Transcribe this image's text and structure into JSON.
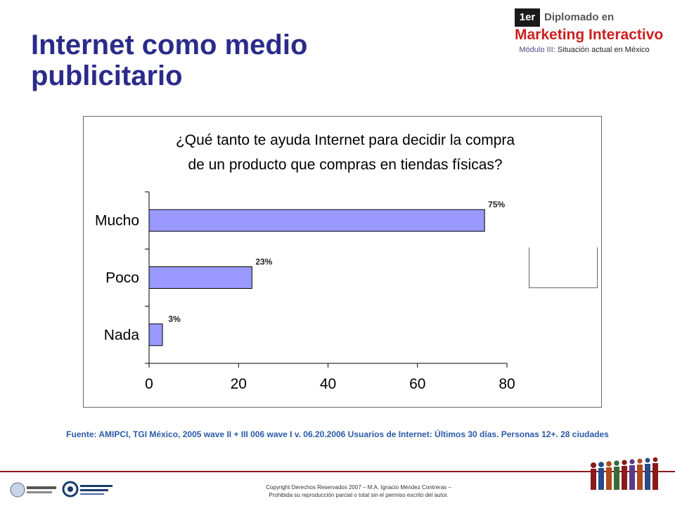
{
  "slide": {
    "title": "Internet como medio publicitario",
    "source": "Fuente: AMIPCI, TGI México, 2005 wave II + III 006 wave I v. 06.20.2006 Usuarios de Internet: Últimos 30 días. Personas 12+. 28 ciudades",
    "copyright_line1": "Copyright Derechos Reservados 2007 – M.A. Ignacio Méndez Contreras –",
    "copyright_line2": "Prohibida su reproducción parcial o total sin el permiso escrito del autor."
  },
  "logo": {
    "badge": "1er",
    "line1": "Diplomado en",
    "line2": "Marketing Interactivo",
    "module_label": "Módulo III",
    "module_text": ": Situación actual en México"
  },
  "chart_data": {
    "type": "bar",
    "orientation": "horizontal",
    "title_lines": [
      "¿Qué tanto te ayuda Internet para decidir la compra",
      "de un producto que compras en tiendas físicas?"
    ],
    "categories": [
      "Mucho",
      "Poco",
      "Nada"
    ],
    "values": [
      75,
      23,
      3
    ],
    "data_labels": [
      "75%",
      "23%",
      "3%"
    ],
    "xlim": [
      0,
      80
    ],
    "xticks": [
      "0",
      "20",
      "40",
      "60",
      "80"
    ],
    "grid": false,
    "legend": "none",
    "bar_color": "#9999ff",
    "bar_stroke": "#000000"
  },
  "colors": {
    "title": "#2b2b8a",
    "source_text": "#2a5aa8",
    "accent_red": "#cc1f1f"
  }
}
